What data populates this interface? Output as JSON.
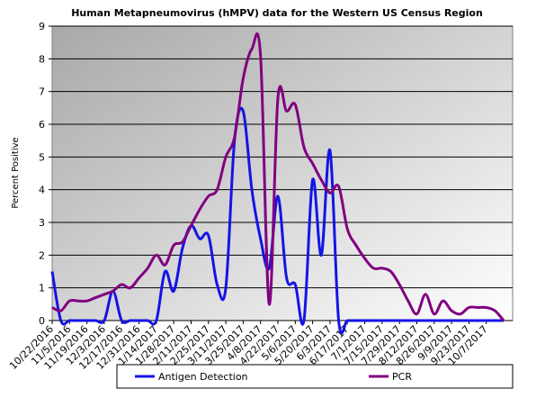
{
  "chart_data": {
    "type": "line",
    "title": "Human Metapneumovirus (hMPV) data for the Western US Census Region",
    "y_label": "Percent Positive",
    "categories": [
      "10/22/2016",
      null,
      "11/5/2016",
      null,
      "11/19/2016",
      null,
      "12/3/2016",
      null,
      "12/17/2016",
      null,
      "12/31/2016",
      null,
      "1/14/2017",
      null,
      "1/28/2017",
      null,
      "2/11/2017",
      null,
      "2/25/2017",
      null,
      "3/11/2017",
      null,
      "3/25/2017",
      null,
      "4/8/2017",
      null,
      "4/22/2017",
      null,
      "5/6/2017",
      null,
      "5/20/2017",
      null,
      "6/3/2017",
      null,
      "6/17/2017",
      null,
      "7/1/2017",
      null,
      "7/15/2017",
      null,
      "7/29/2017",
      null,
      "8/12/2017",
      null,
      "8/26/2017",
      null,
      "9/9/2017",
      null,
      "9/23/2017",
      null,
      "10/7/2017",
      null,
      null
    ],
    "series": [
      {
        "name": "Antigen Detection",
        "color": "#1414e6",
        "values": [
          1.5,
          0,
          0,
          0,
          0,
          0,
          0,
          0.9,
          0,
          0,
          0,
          0,
          0,
          1.5,
          0.9,
          2.2,
          2.9,
          2.5,
          2.6,
          1.1,
          1.0,
          5.5,
          6.4,
          4.0,
          2.5,
          1.6,
          3.8,
          1.3,
          1.1,
          0,
          4.3,
          2.0,
          5.2,
          0,
          0,
          0,
          0,
          0,
          0,
          0,
          0,
          0,
          0,
          0,
          0,
          0,
          0,
          0,
          0,
          0,
          0,
          0,
          0
        ]
      },
      {
        "name": "PCR",
        "color": "#800080",
        "values": [
          0.4,
          0.3,
          0.6,
          0.6,
          0.6,
          0.7,
          0.8,
          0.9,
          1.1,
          1.0,
          1.3,
          1.6,
          2.0,
          1.7,
          2.3,
          2.4,
          2.9,
          3.4,
          3.8,
          4.0,
          5.0,
          5.6,
          7.4,
          8.3,
          8.1,
          0.5,
          6.8,
          6.4,
          6.6,
          5.3,
          4.8,
          4.3,
          3.9,
          4.1,
          2.8,
          2.3,
          1.9,
          1.6,
          1.6,
          1.5,
          1.1,
          0.6,
          0.2,
          0.8,
          0.2,
          0.6,
          0.3,
          0.2,
          0.4,
          0.4,
          0.4,
          0.3,
          0
        ]
      }
    ],
    "ylim": [
      0,
      9
    ],
    "yticks": [
      0,
      1,
      2,
      3,
      4,
      5,
      6,
      7,
      8,
      9
    ],
    "grid": true
  }
}
